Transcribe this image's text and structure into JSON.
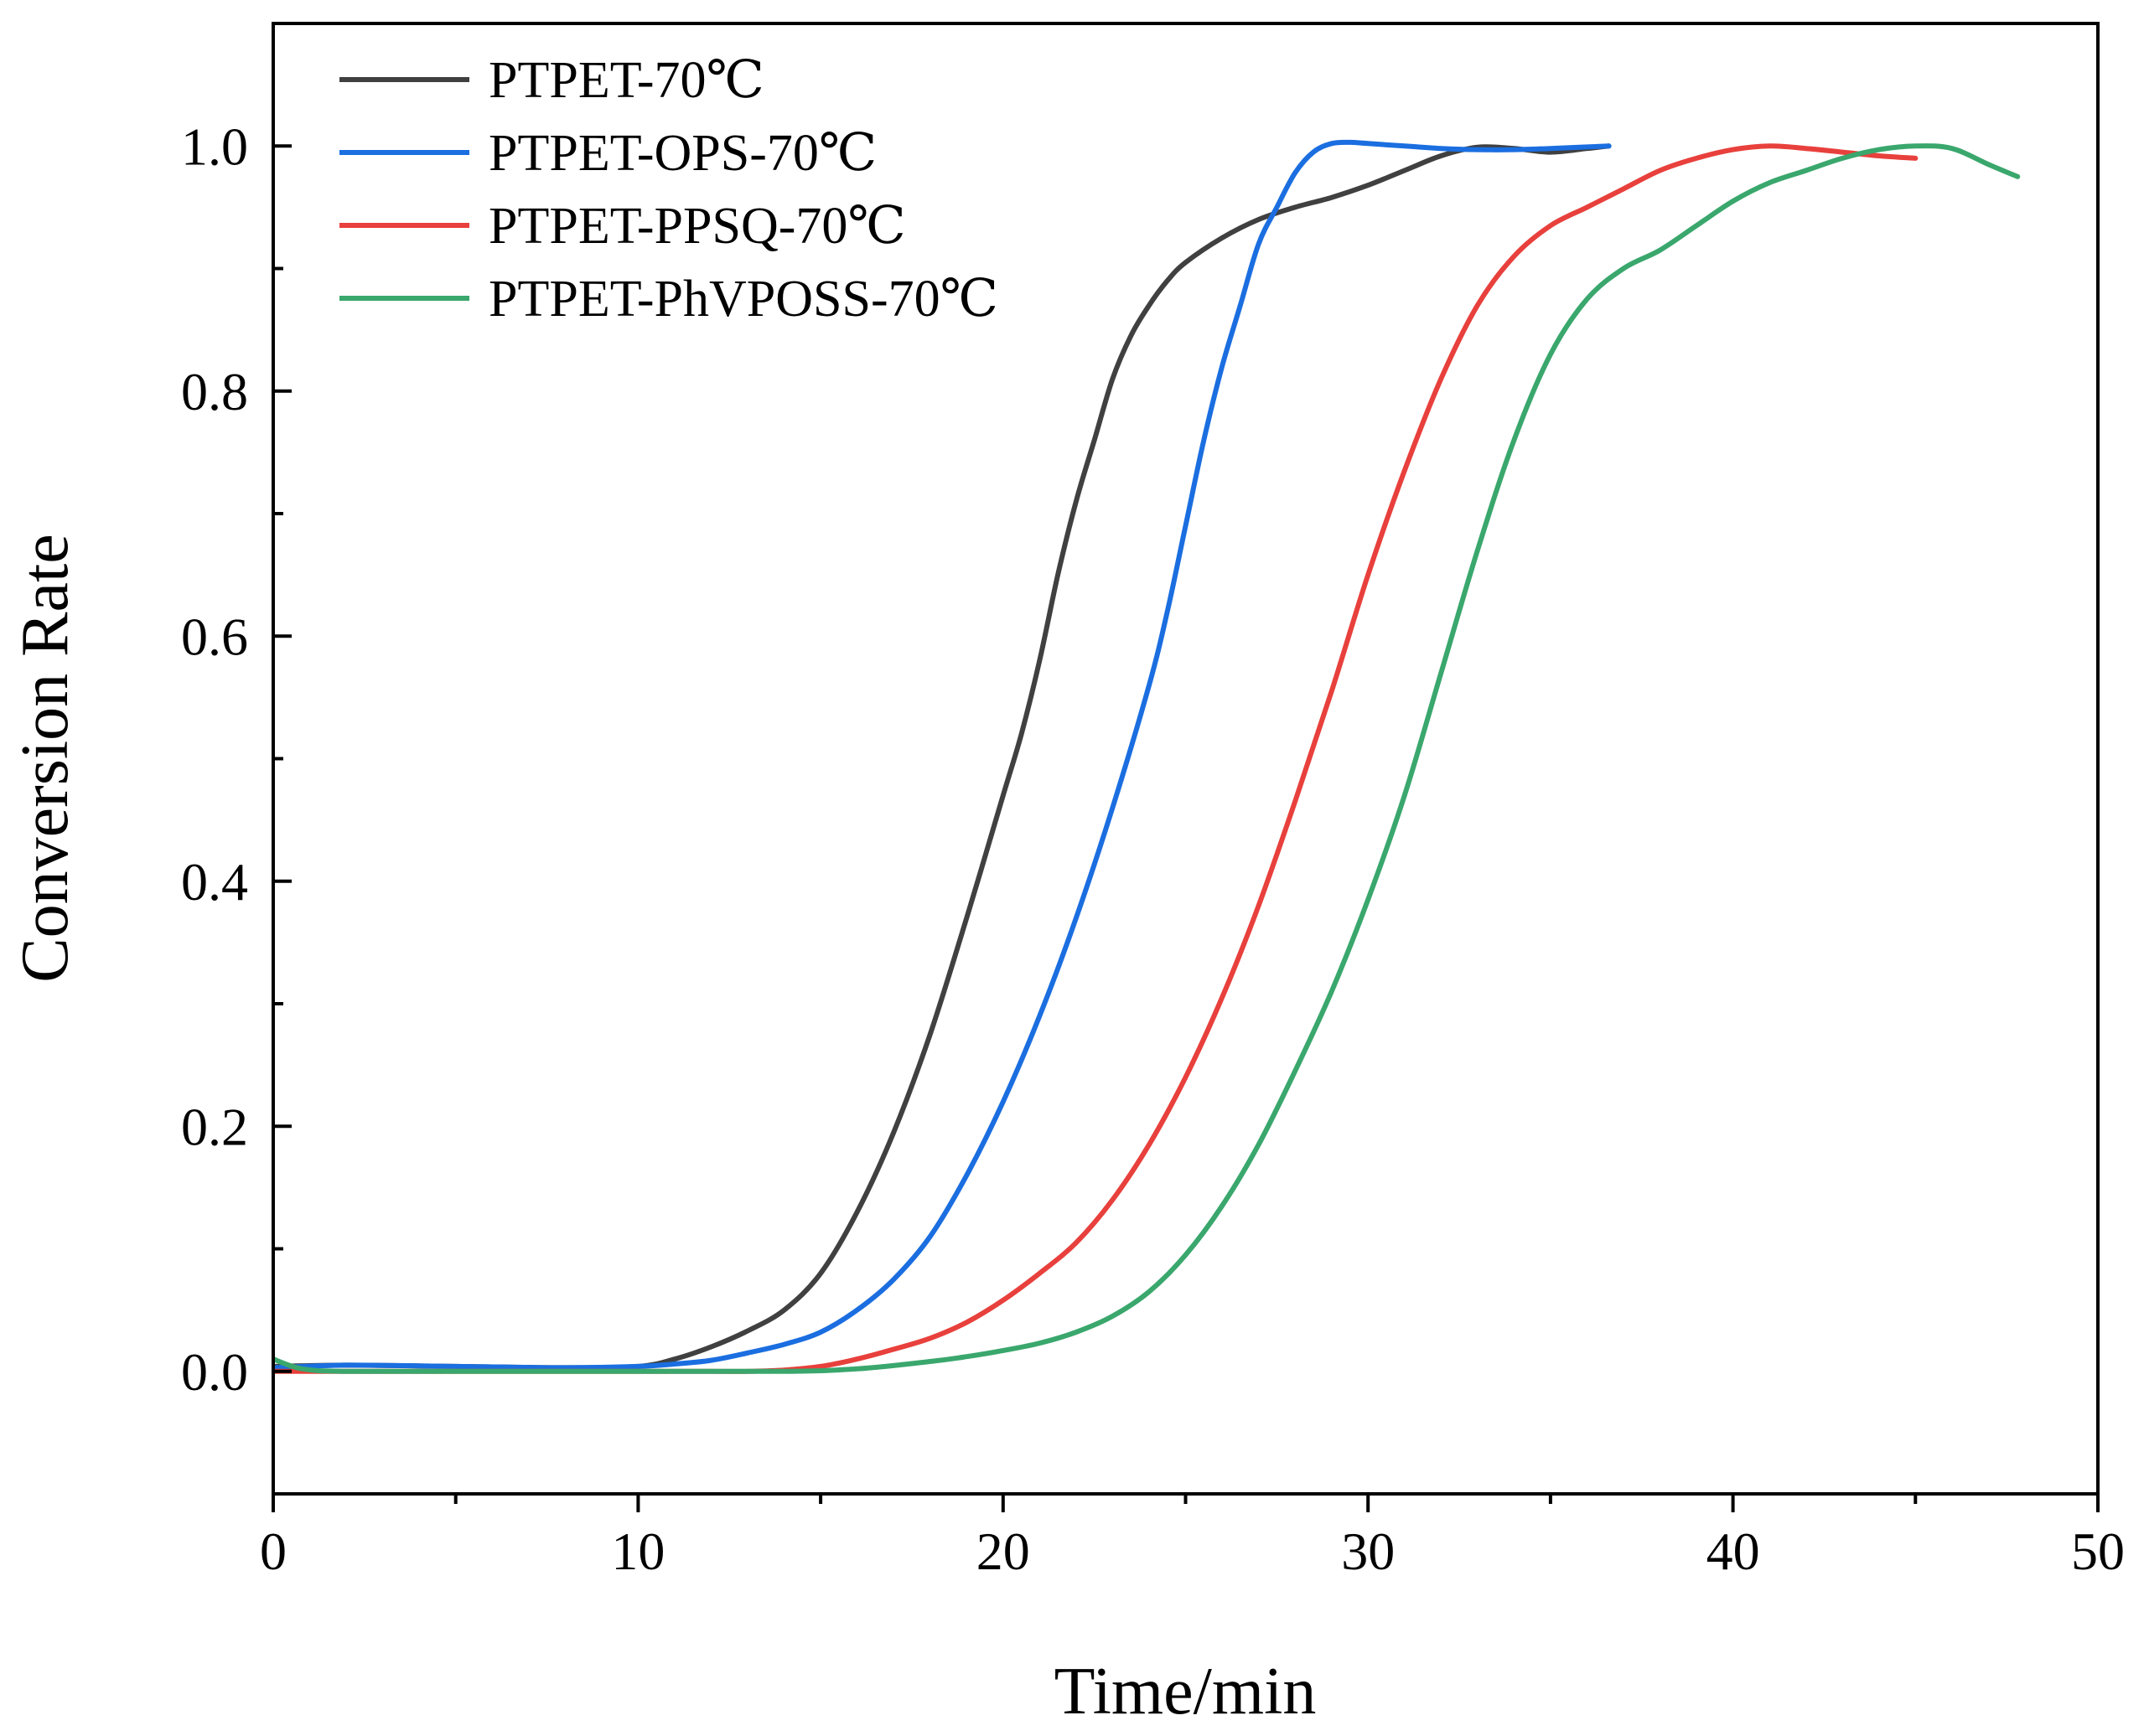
{
  "chart_data": {
    "type": "line",
    "title": "",
    "xlabel": "Time/min",
    "ylabel": "Conversion Rate",
    "xlim": [
      0,
      50
    ],
    "ylim": [
      -0.1,
      1.1
    ],
    "xticks": [
      0,
      10,
      20,
      30,
      40,
      50
    ],
    "xtick_labels": [
      "0",
      "10",
      "20",
      "30",
      "40",
      "50"
    ],
    "yticks": [
      0.0,
      0.2,
      0.4,
      0.6,
      0.8,
      1.0
    ],
    "ytick_labels": [
      "0.0",
      "0.2",
      "0.4",
      "0.6",
      "0.8",
      "1.0"
    ],
    "grid": false,
    "legend_position": "top-left",
    "series": [
      {
        "name": "PTPET-70℃",
        "color": "#404040",
        "points": [
          [
            0,
            0.004
          ],
          [
            2,
            0.005
          ],
          [
            5,
            0.004
          ],
          [
            8,
            0.003
          ],
          [
            10,
            0.004
          ],
          [
            11,
            0.01
          ],
          [
            12,
            0.02
          ],
          [
            13,
            0.033
          ],
          [
            14,
            0.05
          ],
          [
            15,
            0.08
          ],
          [
            16,
            0.13
          ],
          [
            17,
            0.195
          ],
          [
            18,
            0.275
          ],
          [
            19,
            0.37
          ],
          [
            20,
            0.47
          ],
          [
            20.5,
            0.52
          ],
          [
            21,
            0.58
          ],
          [
            21.5,
            0.65
          ],
          [
            22,
            0.71
          ],
          [
            22.5,
            0.76
          ],
          [
            23,
            0.81
          ],
          [
            23.5,
            0.845
          ],
          [
            24,
            0.87
          ],
          [
            24.5,
            0.89
          ],
          [
            25,
            0.905
          ],
          [
            26,
            0.925
          ],
          [
            27,
            0.94
          ],
          [
            28,
            0.95
          ],
          [
            29,
            0.958
          ],
          [
            30,
            0.968
          ],
          [
            31,
            0.98
          ],
          [
            32,
            0.992
          ],
          [
            33,
            0.999
          ],
          [
            34,
            0.998
          ],
          [
            35,
            0.995
          ],
          [
            36,
            0.998
          ],
          [
            36.6,
            1.0
          ]
        ]
      },
      {
        "name": "PTPET-OPS-70℃",
        "color": "#1b6ee0",
        "points": [
          [
            0,
            0.003
          ],
          [
            2,
            0.005
          ],
          [
            5,
            0.004
          ],
          [
            8,
            0.003
          ],
          [
            10,
            0.004
          ],
          [
            11,
            0.006
          ],
          [
            12,
            0.009
          ],
          [
            13,
            0.015
          ],
          [
            14,
            0.022
          ],
          [
            15,
            0.032
          ],
          [
            16,
            0.05
          ],
          [
            17,
            0.075
          ],
          [
            18,
            0.11
          ],
          [
            19,
            0.16
          ],
          [
            20,
            0.22
          ],
          [
            21,
            0.29
          ],
          [
            22,
            0.37
          ],
          [
            23,
            0.46
          ],
          [
            24,
            0.56
          ],
          [
            24.5,
            0.62
          ],
          [
            25,
            0.69
          ],
          [
            25.5,
            0.76
          ],
          [
            26,
            0.82
          ],
          [
            26.5,
            0.87
          ],
          [
            27,
            0.92
          ],
          [
            27.5,
            0.95
          ],
          [
            28,
            0.978
          ],
          [
            28.5,
            0.995
          ],
          [
            29,
            1.002
          ],
          [
            29.5,
            1.003
          ],
          [
            30,
            1.002
          ],
          [
            31,
            1.0
          ],
          [
            32,
            0.998
          ],
          [
            33,
            0.997
          ],
          [
            34,
            0.997
          ],
          [
            35,
            0.998
          ],
          [
            36.6,
            1.0
          ]
        ]
      },
      {
        "name": "PTPET-PPSQ-70℃",
        "color": "#e8403c",
        "points": [
          [
            0,
            0.0
          ],
          [
            2,
            0.0
          ],
          [
            5,
            0.0
          ],
          [
            8,
            0.0
          ],
          [
            10,
            0.0
          ],
          [
            12,
            0.0
          ],
          [
            13,
            0.0
          ],
          [
            14,
            0.001
          ],
          [
            15,
            0.004
          ],
          [
            16,
            0.01
          ],
          [
            17,
            0.018
          ],
          [
            18,
            0.027
          ],
          [
            19,
            0.04
          ],
          [
            20,
            0.058
          ],
          [
            21,
            0.08
          ],
          [
            22,
            0.105
          ],
          [
            23,
            0.14
          ],
          [
            24,
            0.185
          ],
          [
            25,
            0.24
          ],
          [
            26,
            0.305
          ],
          [
            27,
            0.38
          ],
          [
            28,
            0.465
          ],
          [
            29,
            0.555
          ],
          [
            30,
            0.65
          ],
          [
            31,
            0.735
          ],
          [
            32,
            0.81
          ],
          [
            33,
            0.87
          ],
          [
            34,
            0.91
          ],
          [
            35,
            0.935
          ],
          [
            36,
            0.95
          ],
          [
            37,
            0.965
          ],
          [
            38,
            0.98
          ],
          [
            39,
            0.99
          ],
          [
            40,
            0.997
          ],
          [
            41,
            1.0
          ],
          [
            42,
            0.998
          ],
          [
            43,
            0.995
          ],
          [
            44,
            0.992
          ],
          [
            45,
            0.99
          ]
        ]
      },
      {
        "name": "PTPET-PhVPOSS-70℃",
        "color": "#3aa76d",
        "points": [
          [
            0,
            0.01
          ],
          [
            0.8,
            0.002
          ],
          [
            2,
            0.0
          ],
          [
            5,
            0.0
          ],
          [
            10,
            0.0
          ],
          [
            14,
            0.0
          ],
          [
            16,
            0.002
          ],
          [
            18,
            0.008
          ],
          [
            19,
            0.012
          ],
          [
            20,
            0.017
          ],
          [
            21,
            0.023
          ],
          [
            22,
            0.032
          ],
          [
            23,
            0.045
          ],
          [
            24,
            0.065
          ],
          [
            25,
            0.095
          ],
          [
            26,
            0.135
          ],
          [
            27,
            0.185
          ],
          [
            28,
            0.245
          ],
          [
            29,
            0.31
          ],
          [
            30,
            0.385
          ],
          [
            31,
            0.47
          ],
          [
            32,
            0.57
          ],
          [
            33,
            0.67
          ],
          [
            34,
            0.76
          ],
          [
            35,
            0.83
          ],
          [
            36,
            0.875
          ],
          [
            37,
            0.9
          ],
          [
            38,
            0.915
          ],
          [
            39,
            0.935
          ],
          [
            40,
            0.955
          ],
          [
            41,
            0.97
          ],
          [
            42,
            0.98
          ],
          [
            43,
            0.99
          ],
          [
            44,
            0.997
          ],
          [
            45,
            1.0
          ],
          [
            46,
            0.998
          ],
          [
            47,
            0.985
          ],
          [
            47.8,
            0.975
          ]
        ]
      }
    ]
  }
}
